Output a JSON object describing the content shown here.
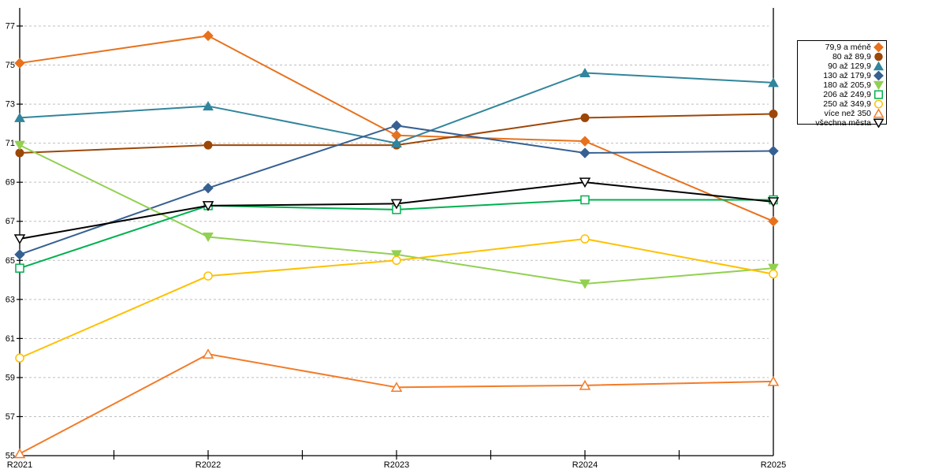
{
  "chart_data": {
    "type": "line",
    "title": "",
    "xlabel": "",
    "ylabel": "",
    "x_categories": [
      "R2021",
      "R2022",
      "R2023",
      "R2024",
      "R2025"
    ],
    "y_ticks": [
      55,
      57,
      59,
      61,
      63,
      65,
      67,
      69,
      71,
      73,
      75,
      77
    ],
    "ylim": [
      55,
      77.9
    ],
    "grid": "horizontal-dashed",
    "legend_position": "right",
    "colors": {
      "gridline": "#BFBFBF",
      "axis": "#000000",
      "background": "#FFFFFF"
    },
    "series": [
      {
        "name": "79,9 a méně",
        "color": "#E8711C",
        "marker": "diamond",
        "fill": "filled",
        "values": [
          75.1,
          76.5,
          71.4,
          71.1,
          67.0
        ]
      },
      {
        "name": "80 až 89,9",
        "color": "#9C4708",
        "marker": "circle",
        "fill": "filled",
        "values": [
          70.5,
          70.9,
          70.9,
          72.3,
          72.5
        ]
      },
      {
        "name": "90 až 129,9",
        "color": "#31859C",
        "marker": "triangle-up",
        "fill": "filled",
        "values": [
          72.3,
          72.9,
          71.0,
          74.6,
          74.1
        ]
      },
      {
        "name": "130 až 179,9",
        "color": "#366092",
        "marker": "diamond",
        "fill": "filled",
        "values": [
          65.3,
          68.7,
          71.9,
          70.5,
          70.6
        ]
      },
      {
        "name": "180 až 205,9",
        "color": "#92D050",
        "marker": "triangle-down",
        "fill": "filled",
        "values": [
          70.9,
          66.2,
          65.3,
          63.8,
          64.6
        ]
      },
      {
        "name": "206 až 249,9",
        "color": "#00B050",
        "marker": "square",
        "fill": "open",
        "values": [
          64.6,
          67.8,
          67.6,
          68.1,
          68.1
        ]
      },
      {
        "name": "250 až 349,9",
        "color": "#FFC000",
        "marker": "circle",
        "fill": "open",
        "values": [
          60.0,
          64.2,
          65.0,
          66.1,
          64.3
        ]
      },
      {
        "name": "více než 350",
        "color": "#F37B28",
        "marker": "triangle-up",
        "fill": "open",
        "values": [
          55.1,
          60.2,
          58.5,
          58.6,
          58.8
        ]
      },
      {
        "name": "všechna města",
        "color": "#000000",
        "marker": "triangle-down",
        "fill": "open",
        "values": [
          66.1,
          67.8,
          67.9,
          69.0,
          68.0
        ]
      }
    ]
  }
}
